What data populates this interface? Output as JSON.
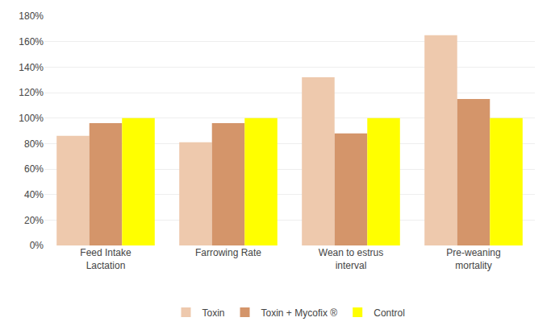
{
  "chart_data": {
    "type": "bar",
    "categories": [
      "Feed Intake\nLactation",
      "Farrowing Rate",
      "Wean to estrus\ninterval",
      "Pre-weaning\nmortality"
    ],
    "series": [
      {
        "name": "Toxin",
        "color": "#EEC9AD",
        "values": [
          86,
          81,
          132,
          165
        ]
      },
      {
        "name": "Toxin + Mycofix ®",
        "color": "#D4956A",
        "values": [
          96,
          96,
          88,
          115
        ]
      },
      {
        "name": "Control",
        "color": "#FFFF00",
        "values": [
          100,
          100,
          100,
          100
        ]
      }
    ],
    "ylim": [
      0,
      180
    ],
    "yticks": [
      {
        "value": 0,
        "label": "0%"
      },
      {
        "value": 20,
        "label": "20%"
      },
      {
        "value": 40,
        "label": "40%"
      },
      {
        "value": 60,
        "label": "60%"
      },
      {
        "value": 80,
        "label": "80%"
      },
      {
        "value": 100,
        "label": "100%"
      },
      {
        "value": 120,
        "label": "120%"
      },
      {
        "value": 140,
        "label": "140%"
      },
      {
        "value": 160,
        "label": "160%"
      },
      {
        "value": 180,
        "label": "180%"
      }
    ],
    "grid": true,
    "legend": "bottom"
  }
}
